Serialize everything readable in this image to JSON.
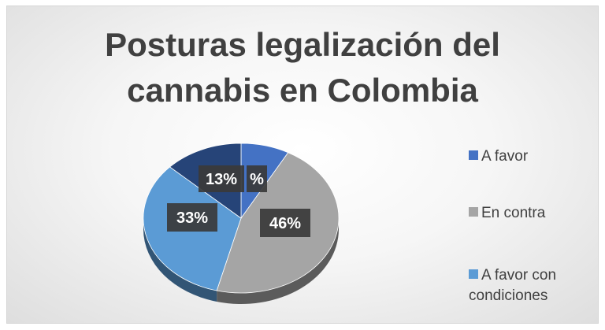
{
  "chart_data": {
    "type": "pie",
    "title_lines": [
      "Posturas legalización del",
      "cannabis en Colombia"
    ],
    "categories": [
      "A favor",
      "En contra",
      "A favor con condiciones",
      ""
    ],
    "values": [
      8,
      46,
      33,
      13
    ],
    "data_labels": [
      "%",
      "46%",
      "33%",
      "13%"
    ],
    "colors": [
      "#4472c4",
      "#a5a5a5",
      "#5b9bd5",
      "#264478"
    ],
    "legend_placement": "right",
    "legend": [
      {
        "lines": [
          "A favor"
        ],
        "color": "#4472c4"
      },
      {
        "lines": [
          "En contra"
        ],
        "color": "#a5a5a5"
      },
      {
        "lines": [
          "A favor con",
          "condiciones"
        ],
        "color": "#5b9bd5"
      }
    ]
  }
}
